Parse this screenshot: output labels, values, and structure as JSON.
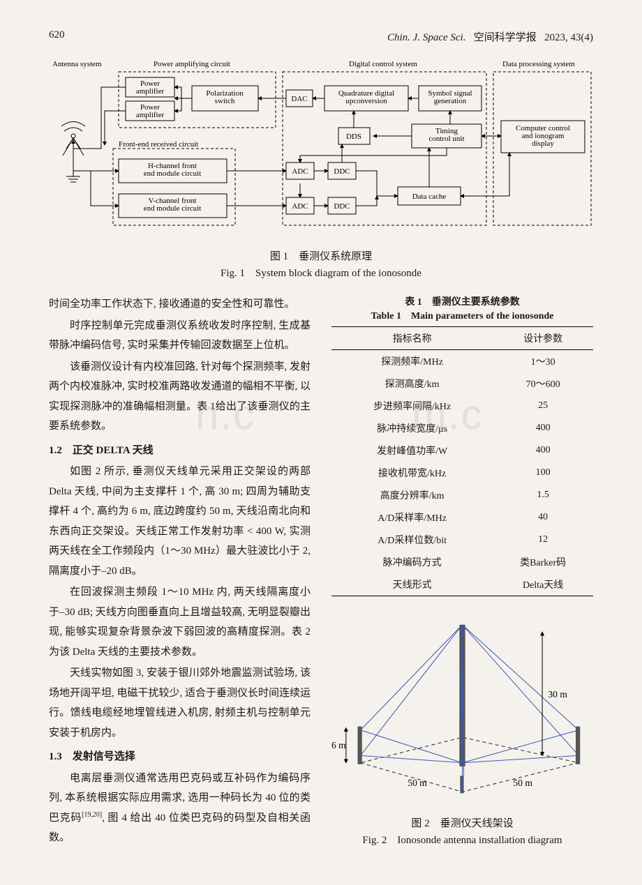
{
  "header": {
    "page_number": "620",
    "journal_italic": "Chin. J. Space Sci.",
    "journal_cn": "空间科学学报",
    "issue": "2023, 43(4)"
  },
  "fig1": {
    "labels": {
      "antenna_system": "Antenna system",
      "power_circuit": "Power amplifying circuit",
      "digital_control": "Digital control system",
      "data_processing": "Data processing system",
      "front_end": "Front-end received circuit",
      "power_amp1": "Power\namplifier",
      "power_amp2": "Power\namplifier",
      "pol_switch": "Polarization\nswitch",
      "dac": "DAC",
      "quad_upconv": "Quadrature digital\nupconversion",
      "symbol_gen": "Symbol signal\ngeneration",
      "dds": "DDS",
      "timing": "Timing\ncontrol unit",
      "computer": "Computer control\nand ionogram\ndisplay",
      "h_channel": "H-channel front\nend module circuit",
      "v_channel": "V-channel front\nend module circuit",
      "adc": "ADC",
      "ddc": "DDC",
      "data_cache": "Data cache"
    },
    "caption_cn": "图 1　垂测仪系统原理",
    "caption_en": "Fig. 1　System block diagram of the ionosonde",
    "style": {
      "box_stroke": "#000000",
      "box_fill": "none",
      "dash": "4,3",
      "font_size": 11,
      "font_family": "Times New Roman"
    }
  },
  "left_column": {
    "p1": "时间全功率工作状态下, 接收通道的安全性和可靠性。",
    "p2": "时序控制单元完成垂测仪系统收发时序控制, 生成基带脉冲编码信号, 实时采集并传输回波数据至上位机。",
    "p3": "该垂测仪设计有内校准回路, 针对每个探测频率, 发射两个内校准脉冲, 实时校准两路收发通道的幅相不平衡, 以实现探测脉冲的准确幅相测量。表 1给出了该垂测仪的主要系统参数。",
    "h12": "1.2　正交 DELTA 天线",
    "p4": "如图 2 所示, 垂测仪天线单元采用正交架设的两部 Delta 天线, 中间为主支撑杆 1 个, 高 30 m; 四周为辅助支撑杆 4 个, 高约为 6 m, 底边跨度约 50 m, 天线沿南北向和东西向正交架设。天线正常工作发射功率 < 400 W, 实测两天线在全工作频段内（1～30 MHz）最大驻波比小于 2, 隔离度小于–20 dB。",
    "p5": "在回波探测主频段 1～10 MHz 内, 两天线隔离度小于–30 dB; 天线方向图垂直向上且增益较高, 无明显裂瓣出现, 能够实现复杂背景杂波下弱回波的高精度探测。表 2 为该 Delta 天线的主要技术参数。",
    "p6": "天线实物如图 3, 安装于银川郊外地震监测试验场, 该场地开阔平坦, 电磁干扰较少, 适合于垂测仪长时间连续运行。馈线电缆经地埋管线进入机房, 射频主机与控制单元安装于机房内。",
    "h13": "1.3　发射信号选择",
    "p7_a": "电离层垂测仪通常选用巴克码或互补码作为编码序列, 本系统根据实际应用需求, 选用一种码长为 40 位的类巴克码",
    "p7_sup": "[19,20]",
    "p7_b": ", 图 4 给出 40 位类巴克码的码型及自相关函数。"
  },
  "table1": {
    "title_cn": "表 1　垂测仪主要系统参数",
    "title_en": "Table 1　Main parameters of the ionosonde",
    "columns": [
      "指标名称",
      "设计参数"
    ],
    "rows": [
      [
        "探测频率/MHz",
        "1～30"
      ],
      [
        "探测高度/km",
        "70～600"
      ],
      [
        "步进频率间隔/kHz",
        "25"
      ],
      [
        "脉冲持续宽度/μs",
        "400"
      ],
      [
        "发射峰值功率/W",
        "400"
      ],
      [
        "接收机带宽/kHz",
        "100"
      ],
      [
        "高度分辨率/km",
        "1.5"
      ],
      [
        "A/D采样率/MHz",
        "40"
      ],
      [
        "A/D采样位数/bit",
        "12"
      ],
      [
        "脉冲编码方式",
        "类Barker码"
      ],
      [
        "天线形式",
        "Delta天线"
      ]
    ]
  },
  "fig2": {
    "caption_cn": "图 2　垂测仪天线架设",
    "caption_en": "Fig. 2　Ionosonde antenna installation diagram",
    "labels": {
      "h30": "30 m",
      "h6": "6 m",
      "d50a": "50 m",
      "d50b": "50 m"
    },
    "style": {
      "wire_color": "#3b5bb0",
      "pole_color": "#2a2a2a",
      "dash_color": "#2a2a2a",
      "font_size": 13
    }
  },
  "watermark": {
    "text1": "n.c",
    "text2": "m.c"
  }
}
